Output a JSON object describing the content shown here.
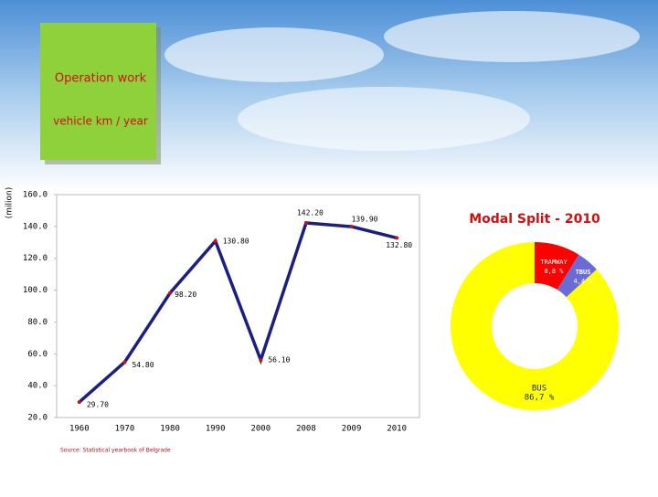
{
  "chart_data": [
    {
      "type": "line",
      "title": "Operation work",
      "subtitle": "vehicle km / year",
      "y_label": "(milion)",
      "categories": [
        "1960",
        "1970",
        "1980",
        "1990",
        "2000",
        "2008",
        "2009",
        "2010"
      ],
      "values": [
        29.7,
        54.8,
        98.2,
        130.8,
        56.1,
        142.2,
        139.9,
        132.8
      ],
      "value_labels": [
        "29.70",
        "54.80",
        "98.20",
        "130.80",
        "56.10",
        "142.20",
        "139.90",
        "132.80"
      ],
      "color": "#1a1f80",
      "marker_color": "#d01010",
      "ylim": [
        20,
        160
      ],
      "yticks": [
        {
          "value": 20,
          "label": "20.0"
        },
        {
          "value": 40,
          "label": "40.0"
        },
        {
          "value": 60,
          "label": "60.0"
        },
        {
          "value": 80,
          "label": "80.0"
        },
        {
          "value": 100,
          "label": "100.0"
        },
        {
          "value": 120,
          "label": "120.0"
        },
        {
          "value": 140,
          "label": "140.0"
        },
        {
          "value": 160,
          "label": "160.0"
        }
      ],
      "note": "Source: Statistical yearbook of Belgrade"
    },
    {
      "type": "pie",
      "title": "Modal Split - 2010",
      "donut": true,
      "categories": [
        "TRAMWAY",
        "TBUS",
        "BUS"
      ],
      "values": [
        8.8,
        4.4,
        86.7
      ],
      "value_labels": [
        "8,8 %",
        "4,4 %",
        "86,7 %"
      ],
      "colors": [
        "#ff0000",
        "#6b6bd6",
        "#ffff00"
      ]
    }
  ]
}
